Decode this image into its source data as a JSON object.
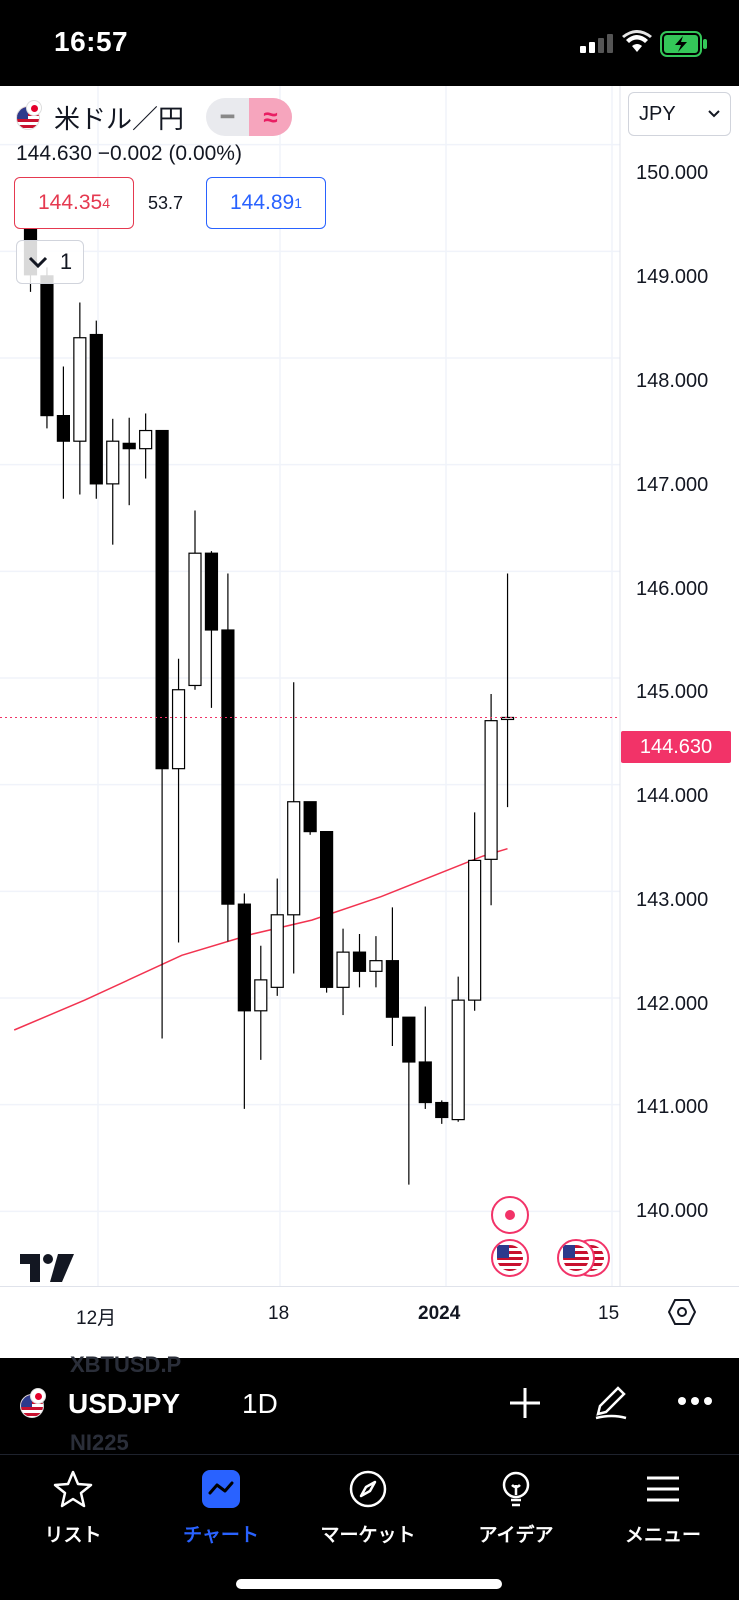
{
  "status_bar": {
    "time": "16:57"
  },
  "chart_header": {
    "symbol_title": "米ドル／円",
    "last_price": "144.630",
    "change": "−0.002",
    "change_pct": "(0.00%)",
    "bid_main": "144.35",
    "bid_sub": "4",
    "spread": "53.7",
    "ask_main": "144.89",
    "ask_sub": "1",
    "collapse_count": "1",
    "currency": "JPY"
  },
  "price_tag": "144.630",
  "colors": {
    "up": "#ffffff",
    "down": "#000000",
    "ma": "#f23350",
    "accent": "#2962ff",
    "price_tag": "#f23368"
  },
  "chart_data": {
    "type": "candlestick",
    "y_ticks": [
      "150.000",
      "149.000",
      "148.000",
      "147.000",
      "146.000",
      "145.000",
      "144.000",
      "143.000",
      "142.000",
      "141.000",
      "140.000"
    ],
    "ylim": [
      139.3,
      150.55
    ],
    "x_ticks": [
      {
        "label": "12月",
        "bold": false
      },
      {
        "label": "18",
        "bold": false
      },
      {
        "label": "2024",
        "bold": true
      },
      {
        "label": "15",
        "bold": false
      }
    ],
    "ohlc": [
      [
        149.35,
        149.49,
        148.62,
        148.78
      ],
      [
        148.77,
        148.85,
        147.34,
        147.46
      ],
      [
        147.46,
        147.92,
        146.68,
        147.22
      ],
      [
        147.22,
        148.52,
        146.72,
        148.19
      ],
      [
        148.22,
        148.35,
        146.68,
        146.82
      ],
      [
        146.82,
        147.43,
        146.25,
        147.22
      ],
      [
        147.2,
        147.44,
        146.62,
        147.15
      ],
      [
        147.15,
        147.48,
        146.87,
        147.32
      ],
      [
        147.32,
        147.32,
        141.62,
        144.15
      ],
      [
        144.15,
        145.18,
        142.52,
        144.89
      ],
      [
        144.93,
        146.57,
        144.89,
        146.17
      ],
      [
        146.17,
        146.19,
        144.72,
        145.45
      ],
      [
        145.45,
        145.98,
        142.53,
        142.88
      ],
      [
        142.88,
        142.98,
        140.96,
        141.88
      ],
      [
        141.88,
        142.49,
        141.42,
        142.17
      ],
      [
        142.1,
        143.12,
        142.02,
        142.78
      ],
      [
        142.78,
        144.96,
        142.23,
        143.84
      ],
      [
        143.84,
        143.84,
        143.53,
        143.56
      ],
      [
        143.56,
        143.56,
        142.05,
        142.1
      ],
      [
        142.1,
        142.65,
        141.84,
        142.43
      ],
      [
        142.43,
        142.6,
        142.1,
        142.25
      ],
      [
        142.25,
        142.58,
        142.1,
        142.35
      ],
      [
        142.35,
        142.85,
        141.55,
        141.82
      ],
      [
        141.82,
        141.82,
        140.25,
        141.4
      ],
      [
        141.4,
        141.92,
        140.96,
        141.02
      ],
      [
        141.02,
        141.04,
        140.82,
        140.88
      ],
      [
        140.86,
        142.2,
        140.84,
        141.98
      ],
      [
        141.98,
        143.74,
        141.88,
        143.29
      ],
      [
        143.3,
        144.85,
        142.87,
        144.6
      ],
      [
        144.63,
        145.98,
        143.79,
        144.63
      ]
    ],
    "ma_line": [
      [
        -0.99,
        141.7
      ],
      [
        3.3,
        141.98
      ],
      [
        9.2,
        142.4
      ],
      [
        13.5,
        142.6
      ],
      [
        17.1,
        142.73
      ],
      [
        21.3,
        142.95
      ],
      [
        27.5,
        143.33
      ],
      [
        29.0,
        143.4
      ]
    ],
    "last_price": 144.63
  },
  "events": {
    "record_icon": "record-dot-icon",
    "us_flag_icon": "us-flag-icon"
  },
  "symbol_bar": {
    "ghost_top": "XBTUSD.P",
    "ghost_bottom": "NI225",
    "symbol": "USDJPY",
    "interval": "1D"
  },
  "bottom_nav": [
    {
      "label": "リスト",
      "icon": "star-icon"
    },
    {
      "label": "チャート",
      "icon": "chart-icon"
    },
    {
      "label": "マーケット",
      "icon": "compass-icon"
    },
    {
      "label": "アイデア",
      "icon": "lightbulb-icon"
    },
    {
      "label": "メニュー",
      "icon": "menu-icon"
    }
  ]
}
